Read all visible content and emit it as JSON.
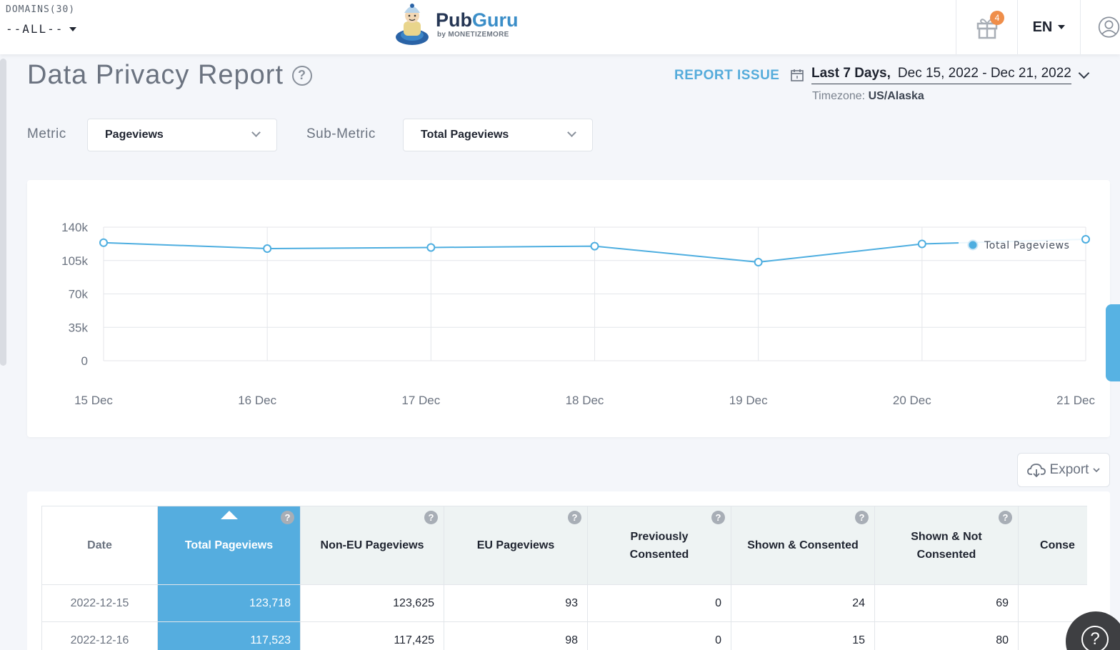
{
  "header": {
    "domains_label": "DOMAINS(30)",
    "domains_value": "--ALL--",
    "logo_main": "Pub",
    "logo_accent": "Guru",
    "logo_sub": "by MONETIZEMORE",
    "gift_badge": "4",
    "language": "EN"
  },
  "page": {
    "title": "Data Privacy Report",
    "help_glyph": "?",
    "report_issue": "REPORT ISSUE",
    "date_preset": "Last 7 Days,",
    "date_range": "Dec 15, 2022 - Dec 21, 2022",
    "timezone_label": "Timezone:",
    "timezone_value": "US/Alaska"
  },
  "filters": {
    "metric_label": "Metric",
    "metric_value": "Pageviews",
    "submetric_label": "Sub-Metric",
    "submetric_value": "Total Pageviews"
  },
  "chart_data": {
    "type": "line",
    "x": [
      "15 Dec",
      "16 Dec",
      "17 Dec",
      "18 Dec",
      "19 Dec",
      "20 Dec",
      "21 Dec"
    ],
    "series": [
      {
        "name": "Total Pageviews",
        "values": [
          123718,
          117523,
          118700,
          120100,
          103300,
          122400,
          127300
        ],
        "color": "#4eaee0"
      }
    ],
    "yticks": [
      "0",
      "35k",
      "70k",
      "105k",
      "140k"
    ],
    "ylim": [
      0,
      140000
    ],
    "grid": true,
    "legend": "top-right"
  },
  "export": {
    "label": "Export"
  },
  "table": {
    "columns": [
      {
        "label": "Date",
        "help": false
      },
      {
        "label": "Total Pageviews",
        "help": true,
        "active": true
      },
      {
        "label": "Non-EU Pageviews",
        "help": true
      },
      {
        "label": "EU Pageviews",
        "help": true
      },
      {
        "label": "Previously Consented",
        "help": true
      },
      {
        "label": "Shown & Consented",
        "help": true
      },
      {
        "label": "Shown & Not Consented",
        "help": true
      },
      {
        "label": "Conse",
        "help": false
      }
    ],
    "rows": [
      [
        "2022-12-15",
        "123,718",
        "123,625",
        "93",
        "0",
        "24",
        "69",
        ""
      ],
      [
        "2022-12-16",
        "117,523",
        "117,425",
        "98",
        "0",
        "15",
        "80",
        ""
      ]
    ]
  },
  "colors": {
    "accent": "#55addf",
    "line": "#4eaee0",
    "badge": "#ef8e4a"
  }
}
